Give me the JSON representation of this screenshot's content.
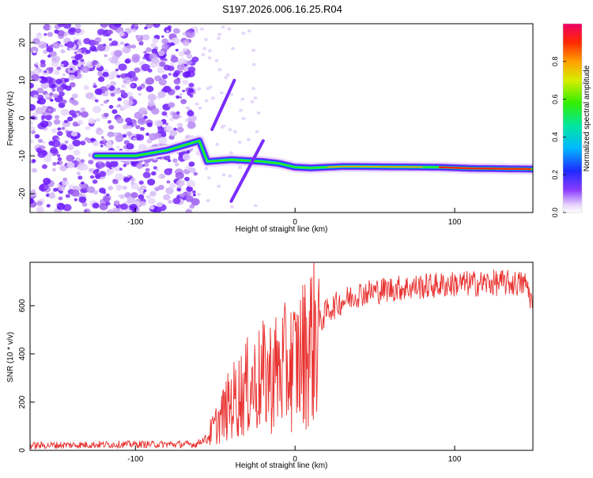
{
  "title": "S197.2026.006.16.25.R04",
  "colors": {
    "snr_line": "#e8312f",
    "frame": "#000000",
    "dots": "#7b2cff"
  },
  "chart_data": [
    {
      "type": "heatmap",
      "name": "spectrogram",
      "xlabel": "Height of straight line (km)",
      "ylabel": "Frequency (Hz)",
      "xlim": [
        -166,
        149
      ],
      "ylim": [
        -25,
        25
      ],
      "x_ticks": [
        -100,
        0,
        100
      ],
      "x_tick_labels": [
        "-100",
        "0",
        "100"
      ],
      "y_ticks": [
        -20,
        -10,
        0,
        10,
        20
      ],
      "y_tick_labels": [
        "-20",
        "-10",
        "0",
        "10",
        "20"
      ],
      "tone_track": {
        "x": [
          -125,
          -100,
          -80,
          -60,
          -55,
          -40,
          -20,
          -10,
          0,
          10,
          30,
          60,
          90,
          110,
          149
        ],
        "y": [
          -10,
          -10,
          -8.5,
          -6,
          -11.5,
          -11,
          -11.5,
          -12,
          -13,
          -13.2,
          -12.8,
          -12.9,
          -13,
          -13.3,
          -13.5
        ]
      },
      "colorbar": {
        "label": "Normalized spectral amplitude",
        "range": [
          0,
          1
        ],
        "ticks": [
          0,
          0.2,
          0.4,
          0.6,
          0.8
        ],
        "tick_labels": [
          "0.0",
          "0.2",
          "0.4",
          "0.6",
          "0.8"
        ]
      }
    },
    {
      "type": "line",
      "name": "snr",
      "xlabel": "Height of straight line (km)",
      "ylabel": "SNR (10 * v/v)",
      "xlim": [
        -166,
        149
      ],
      "ylim": [
        0,
        780
      ],
      "x_ticks": [
        -100,
        0,
        100
      ],
      "x_tick_labels": [
        "-100",
        "0",
        "100"
      ],
      "y_ticks": [
        0,
        200,
        400,
        600
      ],
      "y_tick_labels": [
        "0",
        "200",
        "400",
        "600"
      ],
      "envelope": {
        "x": [
          -166,
          -110,
          -62,
          -55,
          -50,
          -40,
          -30,
          -20,
          -10,
          0,
          5,
          10,
          15,
          20,
          30,
          40,
          60,
          80,
          100,
          130,
          145,
          149
        ],
        "y": [
          20,
          25,
          25,
          55,
          100,
          200,
          260,
          300,
          330,
          360,
          400,
          450,
          520,
          580,
          620,
          650,
          670,
          680,
          690,
          695,
          690,
          600
        ]
      },
      "series": [
        {
          "name": "SNR",
          "color": "#e8312f"
        }
      ]
    }
  ]
}
